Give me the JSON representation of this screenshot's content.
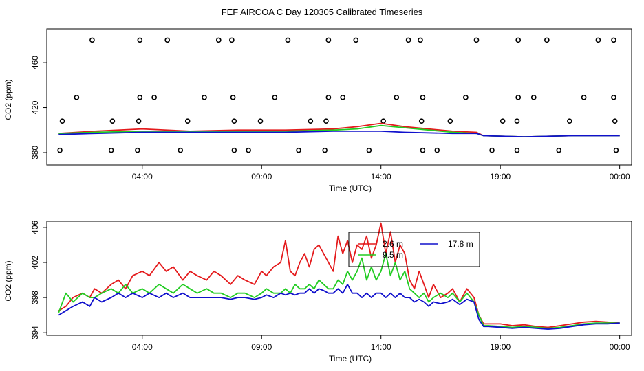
{
  "title": "FEF AIRCOA C  Day 120305  Calibrated Timeseries",
  "colors": {
    "red": "#e41a1c",
    "green": "#22cc22",
    "blue": "#1010cc"
  },
  "chart_data": [
    {
      "type": "line",
      "xlabel": "Time (UTC)",
      "ylabel": "CO2 (ppm)",
      "xlim": [
        0.0,
        24.5
      ],
      "ylim": [
        369,
        490
      ],
      "xticks": [
        {
          "value": 4,
          "label": "04:00"
        },
        {
          "value": 9,
          "label": "09:00"
        },
        {
          "value": 14,
          "label": "14:00"
        },
        {
          "value": 19,
          "label": "19:00"
        },
        {
          "value": 24,
          "label": "00:00"
        }
      ],
      "yticks": [
        380,
        420,
        460
      ],
      "calibration_points": [
        {
          "x": 1.9,
          "y": 480
        },
        {
          "x": 3.9,
          "y": 480
        },
        {
          "x": 5.05,
          "y": 480
        },
        {
          "x": 7.2,
          "y": 480
        },
        {
          "x": 7.75,
          "y": 480
        },
        {
          "x": 10.1,
          "y": 480
        },
        {
          "x": 11.8,
          "y": 480
        },
        {
          "x": 12.95,
          "y": 480
        },
        {
          "x": 15.15,
          "y": 480
        },
        {
          "x": 15.65,
          "y": 480
        },
        {
          "x": 18.0,
          "y": 480
        },
        {
          "x": 19.75,
          "y": 480
        },
        {
          "x": 20.95,
          "y": 480
        },
        {
          "x": 23.1,
          "y": 480
        },
        {
          "x": 23.75,
          "y": 480
        },
        {
          "x": 1.25,
          "y": 429
        },
        {
          "x": 3.9,
          "y": 429
        },
        {
          "x": 4.5,
          "y": 429
        },
        {
          "x": 6.6,
          "y": 429
        },
        {
          "x": 7.8,
          "y": 429
        },
        {
          "x": 9.55,
          "y": 429
        },
        {
          "x": 11.8,
          "y": 429
        },
        {
          "x": 12.4,
          "y": 429
        },
        {
          "x": 14.65,
          "y": 429
        },
        {
          "x": 15.75,
          "y": 429
        },
        {
          "x": 17.55,
          "y": 429
        },
        {
          "x": 19.75,
          "y": 429
        },
        {
          "x": 20.4,
          "y": 429
        },
        {
          "x": 22.5,
          "y": 429
        },
        {
          "x": 23.75,
          "y": 429
        },
        {
          "x": 0.65,
          "y": 408
        },
        {
          "x": 2.75,
          "y": 408
        },
        {
          "x": 3.85,
          "y": 408
        },
        {
          "x": 5.9,
          "y": 408
        },
        {
          "x": 7.85,
          "y": 408
        },
        {
          "x": 8.95,
          "y": 408
        },
        {
          "x": 11.05,
          "y": 408
        },
        {
          "x": 11.7,
          "y": 408
        },
        {
          "x": 14.1,
          "y": 408
        },
        {
          "x": 15.7,
          "y": 408
        },
        {
          "x": 16.9,
          "y": 408
        },
        {
          "x": 19.1,
          "y": 408
        },
        {
          "x": 19.7,
          "y": 408
        },
        {
          "x": 21.9,
          "y": 408
        },
        {
          "x": 23.8,
          "y": 408
        },
        {
          "x": 0.55,
          "y": 382
        },
        {
          "x": 2.7,
          "y": 382
        },
        {
          "x": 3.8,
          "y": 382
        },
        {
          "x": 5.6,
          "y": 382
        },
        {
          "x": 7.85,
          "y": 382
        },
        {
          "x": 8.45,
          "y": 382
        },
        {
          "x": 10.55,
          "y": 382
        },
        {
          "x": 11.65,
          "y": 382
        },
        {
          "x": 13.5,
          "y": 382
        },
        {
          "x": 15.75,
          "y": 382
        },
        {
          "x": 16.35,
          "y": 382
        },
        {
          "x": 18.65,
          "y": 382
        },
        {
          "x": 19.7,
          "y": 382
        },
        {
          "x": 21.45,
          "y": 382
        },
        {
          "x": 23.85,
          "y": 382
        }
      ],
      "series": [
        {
          "color": "red",
          "x": [
            0.5,
            2,
            4,
            6,
            8,
            10,
            12,
            13,
            14,
            15,
            17,
            18,
            18.3,
            20,
            22,
            24
          ],
          "values": [
            397,
            399,
            401,
            399,
            400,
            400,
            401,
            403,
            406,
            403,
            399,
            398,
            395,
            394,
            395,
            395
          ]
        },
        {
          "color": "green",
          "x": [
            0.5,
            2,
            4,
            6,
            8,
            10,
            12,
            13,
            14,
            15,
            17,
            18,
            18.3,
            20,
            22,
            24
          ],
          "values": [
            397,
            398,
            399,
            399,
            399,
            399,
            400,
            401,
            404,
            402,
            398,
            397,
            395,
            394,
            395,
            395
          ]
        },
        {
          "color": "blue",
          "x": [
            0.5,
            2,
            4,
            6,
            8,
            10,
            12,
            13,
            14,
            15,
            17,
            18,
            18.3,
            20,
            22,
            24
          ],
          "values": [
            396,
            397,
            398,
            398,
            398,
            398,
            399,
            399,
            399,
            398,
            397,
            397,
            395,
            394,
            395,
            395
          ]
        }
      ]
    },
    {
      "type": "line",
      "xlabel": "Time (UTC)",
      "ylabel": "CO2 (ppm)",
      "xlim": [
        0.0,
        24.5
      ],
      "ylim": [
        393.7,
        406.7
      ],
      "xticks": [
        {
          "value": 4,
          "label": "04:00"
        },
        {
          "value": 9,
          "label": "09:00"
        },
        {
          "value": 14,
          "label": "14:00"
        },
        {
          "value": 19,
          "label": "19:00"
        },
        {
          "value": 24,
          "label": "00:00"
        }
      ],
      "yticks": [
        394,
        398,
        402,
        406
      ],
      "legend": {
        "position": "top-right-center",
        "entries": [
          {
            "name": "2.6 m",
            "color": "red"
          },
          {
            "name": "17.8 m",
            "color": "blue"
          },
          {
            "name": "9.5 m",
            "color": "green"
          }
        ]
      },
      "series": [
        {
          "name": "2.6 m",
          "color": "red",
          "x": [
            0.5,
            0.8,
            1.1,
            1.5,
            1.8,
            2.0,
            2.3,
            2.7,
            3.0,
            3.3,
            3.6,
            4.0,
            4.3,
            4.7,
            5.0,
            5.3,
            5.7,
            6.0,
            6.3,
            6.7,
            7.0,
            7.3,
            7.7,
            8.0,
            8.3,
            8.7,
            9.0,
            9.2,
            9.5,
            9.8,
            10.0,
            10.2,
            10.4,
            10.6,
            10.8,
            11.0,
            11.2,
            11.4,
            11.6,
            11.8,
            12.0,
            12.2,
            12.4,
            12.6,
            12.8,
            13.0,
            13.2,
            13.4,
            13.6,
            13.8,
            14.0,
            14.2,
            14.4,
            14.6,
            14.8,
            15.0,
            15.2,
            15.4,
            15.6,
            15.8,
            16.0,
            16.2,
            16.5,
            16.8,
            17.0,
            17.3,
            17.6,
            17.9,
            18.1,
            18.3,
            18.5,
            19.0,
            19.5,
            20.0,
            20.5,
            21.0,
            21.5,
            22.0,
            22.5,
            23.0,
            23.5,
            24.0
          ],
          "values": [
            396.5,
            397.0,
            398.0,
            398.5,
            398.0,
            399.0,
            398.5,
            399.5,
            400.0,
            399.0,
            400.5,
            401.0,
            400.5,
            402.0,
            401.0,
            401.5,
            400.0,
            401.0,
            400.5,
            400.0,
            401.0,
            400.5,
            399.5,
            400.5,
            400.0,
            399.5,
            401.0,
            400.5,
            401.5,
            402.0,
            404.5,
            401.0,
            400.5,
            402.0,
            403.0,
            401.5,
            403.5,
            404.0,
            403.0,
            402.0,
            401.0,
            405.0,
            403.0,
            404.5,
            402.0,
            404.0,
            403.5,
            405.0,
            402.5,
            404.0,
            406.5,
            403.0,
            405.5,
            402.0,
            404.0,
            403.0,
            400.0,
            399.0,
            401.0,
            399.5,
            398.0,
            399.5,
            398.0,
            398.5,
            399.0,
            397.5,
            399.0,
            398.0,
            396.0,
            395.0,
            395.0,
            395.0,
            394.8,
            394.9,
            394.7,
            394.6,
            394.8,
            395.0,
            395.2,
            395.3,
            395.2,
            395.1
          ]
        },
        {
          "name": "9.5 m",
          "color": "green",
          "x": [
            0.5,
            0.8,
            1.1,
            1.5,
            1.8,
            2.0,
            2.3,
            2.7,
            3.0,
            3.3,
            3.6,
            4.0,
            4.3,
            4.7,
            5.0,
            5.3,
            5.7,
            6.0,
            6.3,
            6.7,
            7.0,
            7.3,
            7.7,
            8.0,
            8.3,
            8.7,
            9.0,
            9.2,
            9.5,
            9.8,
            10.0,
            10.2,
            10.4,
            10.6,
            10.8,
            11.0,
            11.2,
            11.4,
            11.6,
            11.8,
            12.0,
            12.2,
            12.4,
            12.6,
            12.8,
            13.0,
            13.2,
            13.4,
            13.6,
            13.8,
            14.0,
            14.2,
            14.4,
            14.6,
            14.8,
            15.0,
            15.2,
            15.4,
            15.6,
            15.8,
            16.0,
            16.2,
            16.5,
            16.8,
            17.0,
            17.3,
            17.6,
            17.9,
            18.1,
            18.3,
            18.5,
            19.0,
            19.5,
            20.0,
            20.5,
            21.0,
            21.5,
            22.0,
            22.5,
            23.0,
            23.5,
            24.0
          ],
          "values": [
            396.3,
            398.5,
            397.5,
            398.5,
            398.0,
            398.0,
            398.5,
            399.0,
            398.5,
            399.5,
            398.5,
            399.0,
            398.5,
            399.5,
            399.0,
            398.5,
            399.5,
            399.0,
            398.5,
            399.0,
            398.5,
            398.5,
            398.0,
            398.5,
            398.5,
            398.0,
            398.5,
            399.0,
            398.5,
            398.5,
            399.0,
            398.5,
            399.5,
            399.0,
            399.0,
            399.5,
            399.0,
            400.0,
            399.5,
            399.0,
            399.0,
            400.0,
            399.5,
            401.0,
            400.0,
            401.0,
            402.5,
            400.0,
            401.5,
            400.0,
            401.0,
            403.0,
            400.5,
            402.0,
            400.0,
            401.0,
            399.0,
            398.5,
            398.0,
            398.5,
            397.5,
            398.0,
            398.5,
            398.0,
            398.5,
            397.5,
            398.5,
            397.5,
            396.0,
            394.8,
            394.8,
            394.7,
            394.6,
            394.7,
            394.6,
            394.5,
            394.6,
            394.8,
            395.0,
            395.1,
            395.1,
            395.1
          ]
        },
        {
          "name": "17.8 m",
          "color": "blue",
          "x": [
            0.5,
            0.8,
            1.1,
            1.5,
            1.8,
            2.0,
            2.3,
            2.7,
            3.0,
            3.3,
            3.6,
            4.0,
            4.3,
            4.7,
            5.0,
            5.3,
            5.7,
            6.0,
            6.3,
            6.7,
            7.0,
            7.3,
            7.7,
            8.0,
            8.3,
            8.7,
            9.0,
            9.2,
            9.5,
            9.8,
            10.0,
            10.2,
            10.4,
            10.6,
            10.8,
            11.0,
            11.2,
            11.4,
            11.6,
            11.8,
            12.0,
            12.2,
            12.4,
            12.6,
            12.8,
            13.0,
            13.2,
            13.4,
            13.6,
            13.8,
            14.0,
            14.2,
            14.4,
            14.6,
            14.8,
            15.0,
            15.2,
            15.4,
            15.6,
            15.8,
            16.0,
            16.2,
            16.5,
            16.8,
            17.0,
            17.3,
            17.6,
            17.9,
            18.1,
            18.3,
            18.5,
            19.0,
            19.5,
            20.0,
            20.5,
            21.0,
            21.5,
            22.0,
            22.5,
            23.0,
            23.5,
            24.0
          ],
          "values": [
            396.0,
            396.5,
            397.0,
            397.5,
            397.0,
            398.0,
            397.5,
            398.0,
            398.5,
            398.0,
            398.5,
            398.0,
            398.5,
            398.0,
            398.5,
            398.0,
            398.5,
            398.0,
            398.0,
            398.0,
            398.0,
            398.0,
            397.8,
            398.0,
            398.0,
            397.8,
            398.0,
            398.3,
            398.0,
            398.5,
            398.3,
            398.5,
            398.3,
            398.5,
            398.5,
            399.0,
            398.5,
            399.0,
            398.8,
            398.5,
            398.5,
            399.0,
            398.5,
            399.5,
            398.5,
            398.5,
            398.0,
            398.5,
            398.0,
            398.5,
            398.5,
            398.0,
            398.5,
            398.0,
            398.5,
            398.0,
            398.0,
            397.5,
            397.8,
            397.5,
            397.0,
            397.5,
            397.3,
            397.5,
            397.8,
            397.2,
            397.8,
            397.5,
            395.5,
            394.7,
            394.7,
            394.6,
            394.5,
            394.6,
            394.5,
            394.4,
            394.5,
            394.7,
            394.9,
            395.0,
            395.0,
            395.1
          ]
        }
      ]
    }
  ]
}
